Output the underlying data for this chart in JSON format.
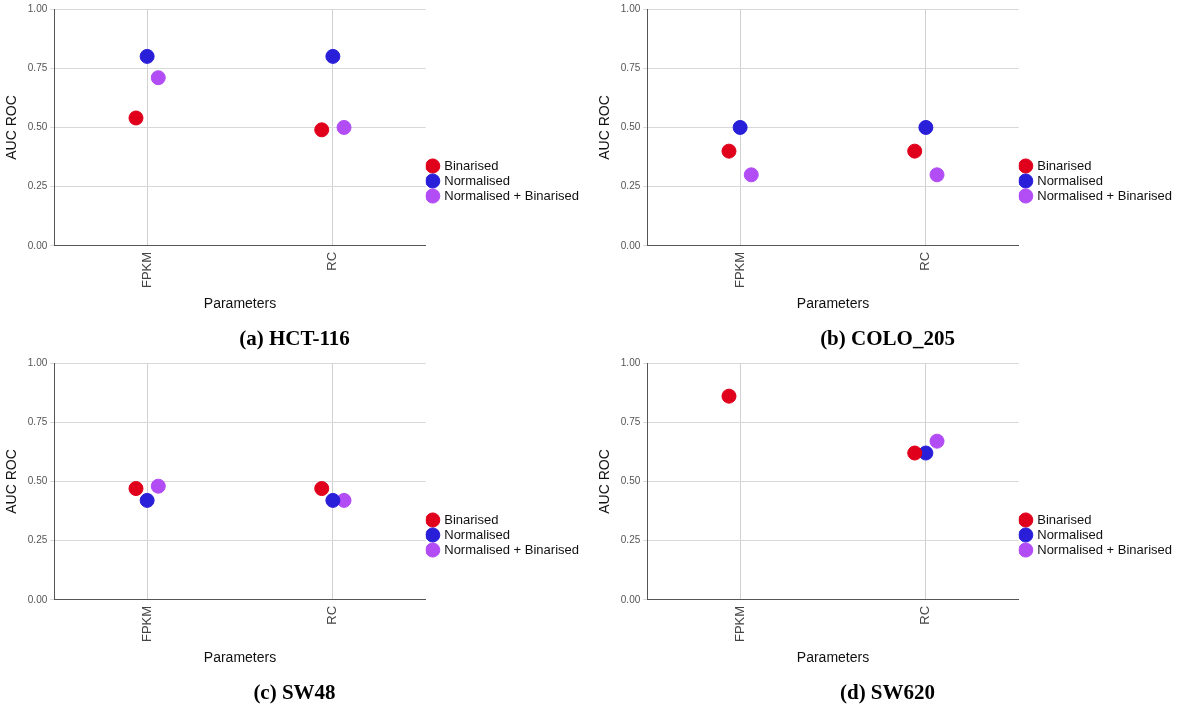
{
  "chart_data": [
    {
      "type": "scatter",
      "title": "(a) HCT-116",
      "xlabel": "Parameters",
      "ylabel": "AUC ROC",
      "categories": [
        "FPKM",
        "RC"
      ],
      "ylim": [
        0,
        1
      ],
      "yticks": [
        {
          "value": 0,
          "label": "0.00"
        },
        {
          "value": 0.25,
          "label": "0.25"
        },
        {
          "value": 0.5,
          "label": "0.50"
        },
        {
          "value": 0.75,
          "label": "0.75"
        },
        {
          "value": 1,
          "label": "1.00"
        }
      ],
      "grid": true,
      "legend": "right",
      "marker": "circle",
      "series": [
        {
          "name": "Binarised",
          "color": "#e0001b",
          "values": [
            0.54,
            0.49
          ]
        },
        {
          "name": "Normalised",
          "color": "#2a1fd9",
          "values": [
            0.8,
            0.8
          ]
        },
        {
          "name": "Normalised + Binarised",
          "color": "#b24cf5",
          "values": [
            0.71,
            0.5
          ]
        }
      ]
    },
    {
      "type": "scatter",
      "title": "(b) COLO_205",
      "xlabel": "Parameters",
      "ylabel": "AUC ROC",
      "categories": [
        "FPKM",
        "RC"
      ],
      "ylim": [
        0,
        1
      ],
      "yticks": [
        {
          "value": 0,
          "label": "0.00"
        },
        {
          "value": 0.25,
          "label": "0.25"
        },
        {
          "value": 0.5,
          "label": "0.50"
        },
        {
          "value": 0.75,
          "label": "0.75"
        },
        {
          "value": 1,
          "label": "1.00"
        }
      ],
      "grid": true,
      "legend": "right",
      "marker": "circle",
      "series": [
        {
          "name": "Binarised",
          "color": "#e0001b",
          "values": [
            0.4,
            0.4
          ]
        },
        {
          "name": "Normalised",
          "color": "#2a1fd9",
          "values": [
            0.5,
            0.5
          ]
        },
        {
          "name": "Normalised + Binarised",
          "color": "#b24cf5",
          "values": [
            0.3,
            0.3
          ]
        }
      ]
    },
    {
      "type": "scatter",
      "title": "(c) SW48",
      "xlabel": "Parameters",
      "ylabel": "AUC ROC",
      "categories": [
        "FPKM",
        "RC"
      ],
      "ylim": [
        0,
        1
      ],
      "yticks": [
        {
          "value": 0,
          "label": "0.00"
        },
        {
          "value": 0.25,
          "label": "0.25"
        },
        {
          "value": 0.5,
          "label": "0.50"
        },
        {
          "value": 0.75,
          "label": "0.75"
        },
        {
          "value": 1,
          "label": "1.00"
        }
      ],
      "grid": true,
      "legend": "right",
      "marker": "circle",
      "series": [
        {
          "name": "Binarised",
          "color": "#e0001b",
          "values": [
            0.47,
            0.47
          ]
        },
        {
          "name": "Normalised",
          "color": "#2a1fd9",
          "values": [
            0.42,
            0.42
          ]
        },
        {
          "name": "Normalised + Binarised",
          "color": "#b24cf5",
          "values": [
            0.48,
            0.42
          ]
        }
      ]
    },
    {
      "type": "scatter",
      "title": "(d) SW620",
      "xlabel": "Parameters",
      "ylabel": "AUC ROC",
      "categories": [
        "FPKM",
        "RC"
      ],
      "ylim": [
        0,
        1
      ],
      "yticks": [
        {
          "value": 0,
          "label": "0.00"
        },
        {
          "value": 0.25,
          "label": "0.25"
        },
        {
          "value": 0.5,
          "label": "0.50"
        },
        {
          "value": 0.75,
          "label": "0.75"
        },
        {
          "value": 1,
          "label": "1.00"
        }
      ],
      "grid": true,
      "legend": "right",
      "marker": "circle",
      "series": [
        {
          "name": "Binarised",
          "color": "#e0001b",
          "values": [
            0.86,
            0.62
          ]
        },
        {
          "name": "Normalised",
          "color": "#2a1fd9",
          "values": [
            null,
            0.62
          ]
        },
        {
          "name": "Normalised + Binarised",
          "color": "#b24cf5",
          "values": [
            null,
            0.67
          ]
        }
      ]
    }
  ]
}
